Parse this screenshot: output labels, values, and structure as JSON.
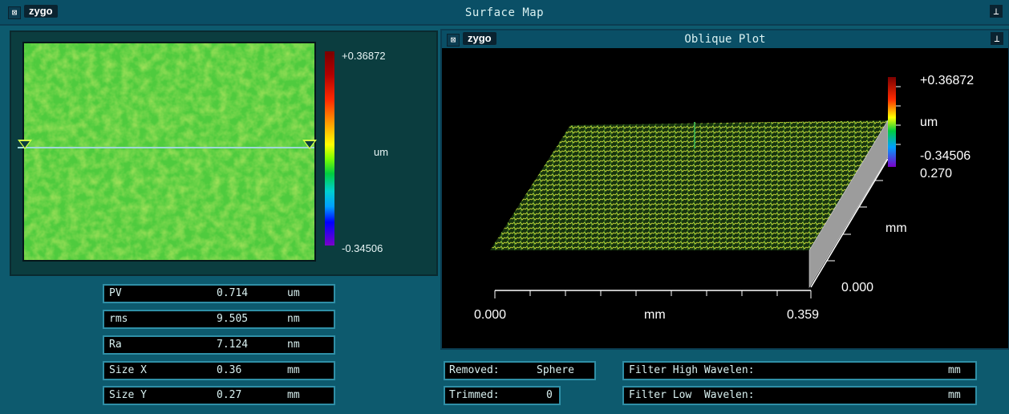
{
  "window": {
    "title": "Surface Map",
    "brand": "zygo",
    "sys_icon": "⊠",
    "pin_icon": "⟂"
  },
  "surface_map": {
    "colorbar": {
      "max": "+0.36872",
      "unit": "um",
      "min": "-0.34506"
    }
  },
  "stats": [
    {
      "label": "PV",
      "value": "0.714",
      "unit": "um"
    },
    {
      "label": "rms",
      "value": "9.505",
      "unit": "nm"
    },
    {
      "label": "Ra",
      "value": "7.124",
      "unit": "nm"
    },
    {
      "label": "Size X",
      "value": "0.36",
      "unit": "mm"
    },
    {
      "label": "Size Y",
      "value": "0.27",
      "unit": "mm"
    }
  ],
  "oblique": {
    "title": "Oblique Plot",
    "brand": "zygo",
    "colorbar": {
      "max": "+0.36872",
      "unit": "um",
      "min": "-0.34506"
    },
    "y_axis": {
      "max": "0.270",
      "unit": "mm",
      "min": "0.000"
    },
    "x_axis": {
      "min": "0.000",
      "unit": "mm",
      "max": "0.359"
    }
  },
  "info": {
    "removed_label": "Removed:",
    "removed_value": "Sphere",
    "trimmed_label": "Trimmed:",
    "trimmed_value": "0",
    "filter_high_label": "Filter High Wavelen:",
    "filter_high_unit": "mm",
    "filter_low_label": "Filter Low  Wavelen:",
    "filter_low_unit": "mm"
  },
  "colors": {
    "surface": "#5fd14a",
    "background": "#0d5a6e",
    "panel": "#0b3d3f"
  }
}
